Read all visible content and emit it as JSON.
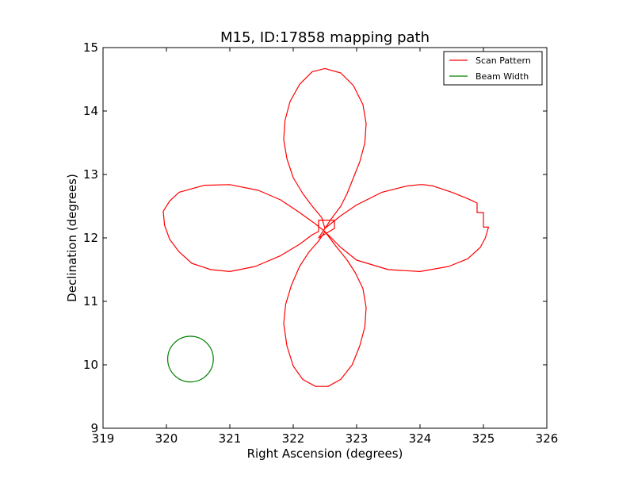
{
  "chart_data": {
    "type": "line",
    "title": "M15, ID:17858 mapping path",
    "xlabel": "Right Ascension (degrees)",
    "ylabel": "Declination (degrees)",
    "xlim": [
      319,
      326
    ],
    "ylim": [
      9,
      15
    ],
    "xticks": [
      319,
      320,
      321,
      322,
      323,
      324,
      325,
      326
    ],
    "yticks": [
      9,
      10,
      11,
      12,
      13,
      14,
      15
    ],
    "grid": false,
    "legend_position": "top-right",
    "series": [
      {
        "name": "Scan Pattern",
        "color": "#ff0000",
        "x": [
          322.5,
          322.6,
          322.75,
          322.85,
          322.95,
          323.05,
          323.13,
          323.15,
          323.1,
          322.95,
          322.75,
          322.5,
          322.3,
          322.1,
          321.95,
          321.87,
          321.85,
          321.9,
          322.0,
          322.15,
          322.3,
          322.45,
          322.5,
          322.75,
          323.0,
          323.4,
          323.8,
          324.0,
          324.05,
          324.2,
          324.5,
          324.75,
          324.9,
          324.9,
          325.0,
          325.0,
          325.08,
          325.08,
          325.03,
          324.95,
          324.75,
          324.45,
          324.0,
          323.5,
          323.0,
          322.75,
          322.5,
          322.65,
          322.85,
          322.98,
          323.1,
          323.15,
          323.13,
          323.05,
          322.93,
          322.75,
          322.55,
          322.35,
          322.15,
          322.0,
          321.9,
          321.85,
          321.88,
          321.97,
          322.1,
          322.25,
          322.4,
          322.5,
          322.35,
          322.1,
          321.8,
          321.45,
          321.0,
          320.6,
          320.2,
          320.05,
          319.95,
          319.97,
          320.05,
          320.2,
          320.4,
          320.7,
          321.0,
          321.4,
          321.8,
          322.1,
          322.3,
          322.4,
          322.4,
          322.65,
          322.65,
          322.4,
          322.5
        ],
        "y": [
          12.15,
          12.3,
          12.5,
          12.7,
          12.95,
          13.2,
          13.5,
          13.8,
          14.1,
          14.4,
          14.6,
          14.67,
          14.62,
          14.42,
          14.15,
          13.85,
          13.55,
          13.25,
          12.95,
          12.7,
          12.5,
          12.32,
          12.15,
          12.35,
          12.52,
          12.72,
          12.82,
          12.84,
          12.84,
          12.82,
          12.72,
          12.62,
          12.55,
          12.4,
          12.4,
          12.17,
          12.17,
          12.17,
          12.0,
          11.85,
          11.67,
          11.55,
          11.47,
          11.5,
          11.65,
          11.85,
          12.1,
          11.9,
          11.65,
          11.45,
          11.2,
          10.9,
          10.6,
          10.3,
          10.0,
          9.77,
          9.66,
          9.66,
          9.77,
          9.98,
          10.3,
          10.65,
          10.95,
          11.25,
          11.55,
          11.78,
          11.95,
          12.1,
          12.22,
          12.4,
          12.6,
          12.75,
          12.84,
          12.83,
          12.72,
          12.58,
          12.42,
          12.2,
          11.98,
          11.78,
          11.6,
          11.5,
          11.47,
          11.55,
          11.72,
          11.9,
          12.05,
          12.1,
          12.28,
          12.28,
          12.15,
          12.0,
          12.15
        ]
      },
      {
        "name": "Beam Width",
        "color": "#008000",
        "shape": "circle",
        "center": [
          320.38,
          10.09
        ],
        "radius": 0.36
      }
    ]
  }
}
